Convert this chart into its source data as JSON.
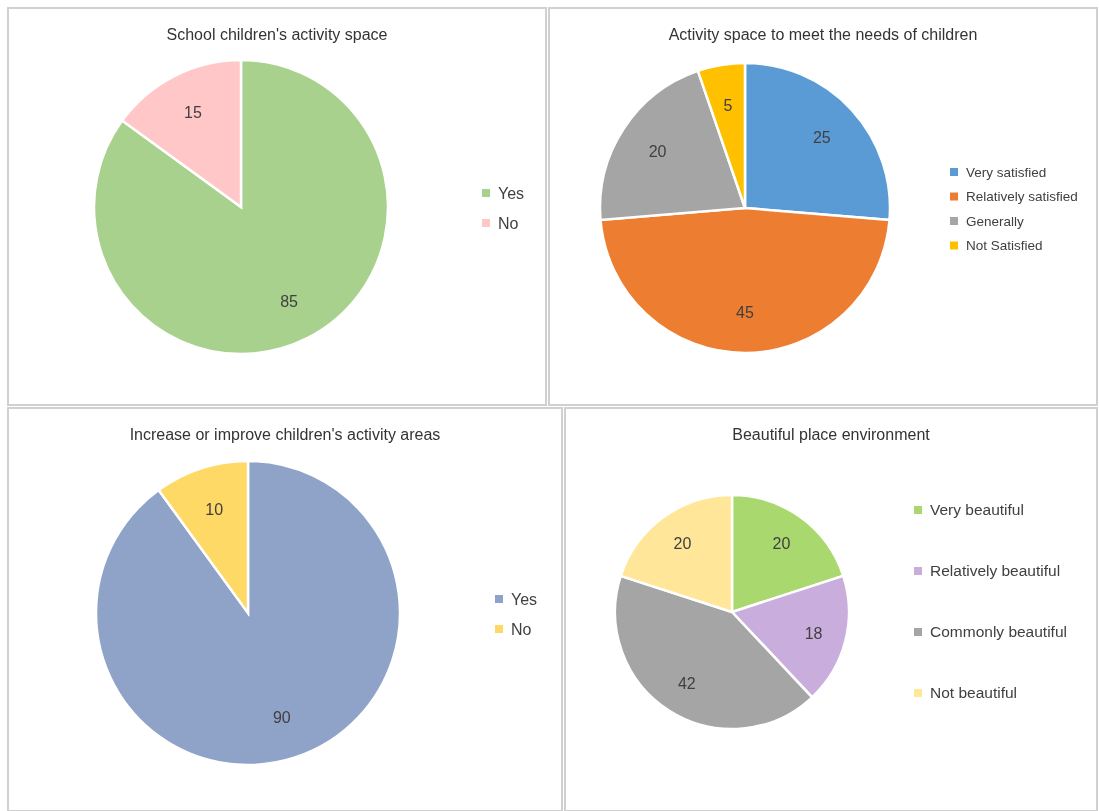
{
  "chart_data": [
    {
      "type": "pie",
      "title": "School children's activity space",
      "categories": [
        "Yes",
        "No"
      ],
      "values": [
        85,
        15
      ],
      "colors": [
        "#a9d18e",
        "#ffc7c7"
      ],
      "data_labels": true,
      "legend": "right"
    },
    {
      "type": "pie",
      "title": "Activity space to meet the needs of children",
      "categories": [
        "Very satisfied",
        "Relatively satisfied",
        "Generally",
        "Not Satisfied"
      ],
      "values": [
        25,
        45,
        20,
        5
      ],
      "colors": [
        "#5b9bd5",
        "#ed7d31",
        "#a5a5a5",
        "#ffc000"
      ],
      "data_labels": true,
      "legend": "right"
    },
    {
      "type": "pie",
      "title": "Increase or improve children's activity areas",
      "categories": [
        "Yes",
        "No"
      ],
      "values": [
        90,
        10
      ],
      "colors": [
        "#8fa2c8",
        "#ffd966"
      ],
      "data_labels": true,
      "legend": "right"
    },
    {
      "type": "pie",
      "title": "Beautiful place environment",
      "categories": [
        "Very beautiful",
        "Relatively beautiful",
        "Commonly beautiful",
        "Not beautiful"
      ],
      "values": [
        20,
        18,
        42,
        20
      ],
      "colors": [
        "#a9d86e",
        "#c9aedd",
        "#a5a5a5",
        "#ffe699"
      ],
      "data_labels": true,
      "legend": "right"
    }
  ]
}
